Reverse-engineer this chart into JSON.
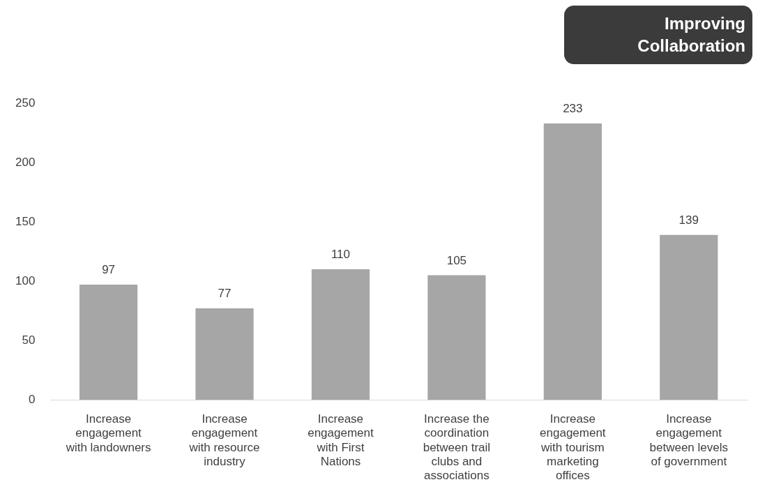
{
  "chart_data": {
    "type": "bar",
    "title": "Improving Collaboration",
    "categories": [
      "Increase engagement with landowners",
      "Increase engagement with resource industry",
      "Increase engagement with First Nations",
      "Increase the coordination between trail clubs and associations",
      "Increase engagement with tourism marketing offices",
      "Increase engagement between levels of government"
    ],
    "values": [
      97,
      77,
      110,
      105,
      233,
      139
    ],
    "color": "#a6a6a6",
    "ylim": [
      0,
      250
    ],
    "yticks": [
      0,
      50,
      100,
      150,
      200,
      250
    ],
    "grid": false,
    "legend": false,
    "data_labels": true
  }
}
